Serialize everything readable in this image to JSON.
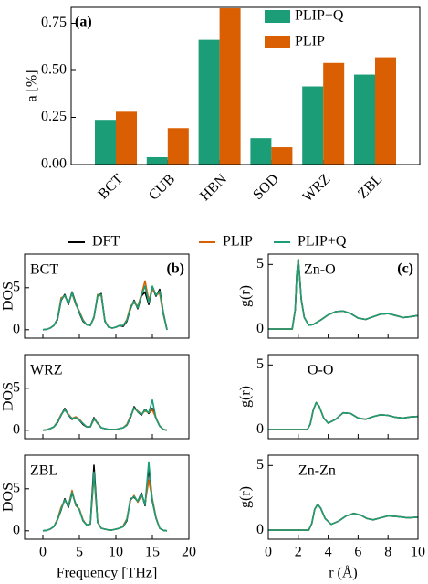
{
  "chart_data": [
    {
      "type": "bar",
      "annotation": "(a)",
      "ylabel": "a [%]",
      "categories": [
        "BCT",
        "CUB",
        "HBN",
        "SOD",
        "WRZ",
        "ZBL"
      ],
      "series": [
        {
          "name": "PLIP+Q",
          "color": "#1b9e77",
          "values": [
            0.237,
            0.039,
            0.662,
            0.14,
            0.415,
            0.478
          ]
        },
        {
          "name": "PLIP",
          "color": "#d95f02",
          "values": [
            0.28,
            0.193,
            0.83,
            0.092,
            0.54,
            0.57
          ]
        }
      ],
      "ylim": [
        0,
        0.835
      ],
      "yticks": [
        {
          "value": 0,
          "label": "0.00"
        },
        {
          "value": 0.25,
          "label": "0.25"
        },
        {
          "value": 0.5,
          "label": "0.50"
        },
        {
          "value": 0.75,
          "label": "0.75"
        }
      ],
      "legend": "upper right"
    },
    {
      "type": "line",
      "title": "BCT",
      "annotation": "(b)",
      "ylabel": "DOS",
      "xlim": [
        -2.5,
        20
      ],
      "ylim": [
        -1,
        9
      ],
      "xticks": [
        0,
        5,
        10,
        15,
        20
      ],
      "yticks": [
        0,
        5
      ],
      "show_xtick_labels": false,
      "legend": "above",
      "x": [
        0,
        0.5,
        1,
        1.5,
        2,
        2.5,
        3,
        3.5,
        4,
        4.5,
        5,
        5.5,
        6,
        6.5,
        7,
        7.5,
        8,
        8.5,
        9,
        9.5,
        10,
        10.5,
        11,
        11.5,
        12,
        12.5,
        13,
        13.5,
        14,
        14.5,
        15,
        15.5,
        16,
        16.5,
        17
      ],
      "series": [
        {
          "name": "DFT",
          "color": "#000000",
          "values": [
            0,
            0.05,
            0.2,
            0.5,
            1.2,
            3.5,
            4.2,
            3.0,
            4.5,
            3.2,
            2.0,
            1.0,
            0.6,
            0.5,
            1.5,
            4.0,
            4.3,
            1.0,
            0.3,
            0.2,
            0.3,
            0.5,
            0.4,
            1.0,
            2.5,
            3.5,
            2.5,
            4.0,
            4.5,
            3.0,
            5.0,
            4.0,
            4.8,
            2.0,
            0
          ]
        },
        {
          "name": "PLIP",
          "color": "#d95f02",
          "values": [
            0,
            0.05,
            0.2,
            0.5,
            1.3,
            3.8,
            4.0,
            3.2,
            4.3,
            3.0,
            2.2,
            1.2,
            0.6,
            0.5,
            1.4,
            4.2,
            4.0,
            1.1,
            0.3,
            0.2,
            0.3,
            0.5,
            0.5,
            1.2,
            2.8,
            3.2,
            2.8,
            4.2,
            5.8,
            3.5,
            4.8,
            4.2,
            4.3,
            1.8,
            0
          ]
        },
        {
          "name": "PLIP+Q",
          "color": "#1b9e77",
          "values": [
            0,
            0.05,
            0.2,
            0.5,
            1.3,
            3.6,
            4.1,
            3.1,
            4.4,
            3.1,
            2.1,
            1.1,
            0.6,
            0.5,
            1.5,
            4.1,
            4.2,
            1.0,
            0.3,
            0.2,
            0.3,
            0.5,
            0.5,
            1.1,
            2.6,
            3.4,
            2.6,
            4.1,
            5.2,
            3.2,
            5.2,
            4.1,
            4.6,
            1.9,
            0
          ]
        }
      ]
    },
    {
      "type": "line",
      "title": "WRZ",
      "ylabel": "DOS",
      "xlim": [
        -2.5,
        20
      ],
      "ylim": [
        -1,
        9
      ],
      "xticks": [
        0,
        5,
        10,
        15,
        20
      ],
      "yticks": [
        0,
        5
      ],
      "show_xtick_labels": false,
      "x": [
        0,
        0.5,
        1,
        1.5,
        2,
        2.5,
        3,
        3.5,
        4,
        4.5,
        5,
        5.5,
        6,
        6.5,
        7,
        7.5,
        8,
        8.5,
        9,
        9.5,
        10,
        10.5,
        11,
        11.5,
        12,
        12.5,
        13,
        13.5,
        14,
        14.5,
        15,
        15.5,
        16,
        16.5,
        17
      ],
      "series": [
        {
          "color": "#000000",
          "values": [
            0,
            0.05,
            0.2,
            0.4,
            0.9,
            1.8,
            2.6,
            1.8,
            1.3,
            1.5,
            1.2,
            0.7,
            0.4,
            0.4,
            1.5,
            0.8,
            0.3,
            0.2,
            0.1,
            0.1,
            0.1,
            0.2,
            0.3,
            0.6,
            1.5,
            2.8,
            2.2,
            1.8,
            2.5,
            2.0,
            2.6,
            1.4,
            0.5,
            0.1,
            0
          ]
        },
        {
          "color": "#d95f02",
          "values": [
            0,
            0.05,
            0.2,
            0.4,
            1.0,
            1.9,
            2.4,
            1.9,
            1.4,
            1.6,
            1.3,
            0.8,
            0.4,
            0.4,
            1.3,
            0.9,
            0.3,
            0.2,
            0.1,
            0.1,
            0.1,
            0.2,
            0.3,
            0.7,
            1.7,
            2.6,
            2.3,
            1.9,
            2.3,
            2.1,
            2.4,
            1.5,
            0.5,
            0.1,
            0
          ]
        },
        {
          "color": "#1b9e77",
          "values": [
            0,
            0.05,
            0.2,
            0.4,
            1.0,
            1.8,
            2.5,
            1.8,
            1.4,
            1.5,
            1.2,
            0.8,
            0.4,
            0.4,
            1.4,
            0.8,
            0.3,
            0.2,
            0.1,
            0.1,
            0.1,
            0.2,
            0.3,
            0.6,
            1.6,
            2.7,
            2.2,
            1.9,
            2.4,
            2.1,
            3.6,
            1.4,
            0.5,
            0.1,
            0
          ]
        }
      ]
    },
    {
      "type": "line",
      "title": "ZBL",
      "ylabel": "DOS",
      "xlabel": "Frequency [THz]",
      "xlim": [
        -2.5,
        20
      ],
      "ylim": [
        -1,
        9
      ],
      "xticks": [
        0,
        5,
        10,
        15,
        20
      ],
      "yticks": [
        0,
        5
      ],
      "show_xtick_labels": true,
      "x": [
        0,
        0.5,
        1,
        1.5,
        2,
        2.5,
        3,
        3.5,
        4,
        4.5,
        5,
        5.5,
        6,
        6.5,
        7,
        7.5,
        8,
        8.5,
        9,
        9.5,
        10,
        10.5,
        11,
        11.5,
        12,
        12.5,
        13,
        13.5,
        14,
        14.5,
        15,
        15.5,
        16,
        16.5,
        17
      ],
      "series": [
        {
          "color": "#000000",
          "values": [
            0,
            0.05,
            0.2,
            0.5,
            1.3,
            2.5,
            3.8,
            2.8,
            4.5,
            3.2,
            2.5,
            1.2,
            0.7,
            0.8,
            7.8,
            1.0,
            0.3,
            0.2,
            0.1,
            0.1,
            0.2,
            0.3,
            0.5,
            1.2,
            3.8,
            4.0,
            3.5,
            4.5,
            3.0,
            7.5,
            3.5,
            1.5,
            0.3,
            0.05,
            0
          ]
        },
        {
          "color": "#d95f02",
          "values": [
            0,
            0.05,
            0.2,
            0.5,
            1.4,
            2.8,
            3.6,
            3.0,
            4.8,
            3.0,
            2.6,
            1.3,
            0.7,
            0.8,
            6.5,
            1.1,
            0.3,
            0.2,
            0.1,
            0.1,
            0.2,
            0.3,
            0.6,
            1.4,
            3.6,
            4.2,
            3.4,
            4.2,
            3.3,
            6.0,
            3.8,
            1.6,
            0.3,
            0.05,
            0
          ]
        },
        {
          "color": "#1b9e77",
          "values": [
            0,
            0.05,
            0.2,
            0.5,
            1.3,
            2.6,
            3.7,
            2.9,
            4.6,
            3.1,
            2.5,
            1.2,
            0.7,
            0.8,
            7.0,
            1.0,
            0.3,
            0.2,
            0.1,
            0.1,
            0.2,
            0.3,
            0.5,
            1.3,
            3.7,
            4.1,
            3.5,
            4.4,
            3.1,
            8.2,
            3.6,
            1.5,
            0.3,
            0.05,
            0
          ]
        }
      ]
    },
    {
      "type": "line",
      "title": "Zn-O",
      "annotation": "(c)",
      "ylabel": "g(r)",
      "xlim": [
        0,
        10
      ],
      "ylim": [
        -0.7,
        5.8
      ],
      "xticks": [
        0,
        2,
        4,
        6,
        8,
        10
      ],
      "yticks": [
        0,
        5
      ],
      "show_xtick_labels": false,
      "x": [
        0,
        1,
        1.6,
        1.8,
        1.9,
        2.0,
        2.1,
        2.2,
        2.4,
        2.7,
        3.0,
        3.5,
        4.0,
        4.5,
        5.0,
        5.5,
        6.0,
        6.5,
        7.0,
        7.5,
        8.0,
        8.5,
        9.0,
        9.5,
        10
      ],
      "series": [
        {
          "color": "#000000",
          "values": [
            0,
            0,
            0,
            1.5,
            4.2,
            5.4,
            4.0,
            2.3,
            0.9,
            0.3,
            0.35,
            0.7,
            1.1,
            1.35,
            1.4,
            1.2,
            0.85,
            0.75,
            0.95,
            1.15,
            1.2,
            1.05,
            0.9,
            0.95,
            1.05
          ]
        },
        {
          "color": "#d95f02",
          "values": [
            0,
            0,
            0,
            1.5,
            4.2,
            5.4,
            4.0,
            2.3,
            0.9,
            0.3,
            0.35,
            0.7,
            1.1,
            1.35,
            1.4,
            1.2,
            0.85,
            0.75,
            0.95,
            1.15,
            1.2,
            1.05,
            0.9,
            0.95,
            1.05
          ]
        },
        {
          "color": "#1b9e77",
          "values": [
            0,
            0,
            0,
            1.5,
            4.2,
            5.4,
            4.0,
            2.3,
            0.9,
            0.3,
            0.35,
            0.7,
            1.1,
            1.35,
            1.4,
            1.2,
            0.85,
            0.75,
            0.95,
            1.15,
            1.2,
            1.05,
            0.9,
            0.95,
            1.05
          ]
        }
      ]
    },
    {
      "type": "line",
      "title": "O-O",
      "ylabel": "g(r)",
      "xlim": [
        0,
        10
      ],
      "ylim": [
        -0.7,
        5.8
      ],
      "xticks": [
        0,
        2,
        4,
        6,
        8,
        10
      ],
      "yticks": [
        0,
        5
      ],
      "show_xtick_labels": false,
      "x": [
        0,
        1,
        2,
        2.6,
        2.8,
        3.0,
        3.2,
        3.4,
        3.7,
        4.0,
        4.5,
        5.0,
        5.5,
        6.0,
        6.5,
        7.0,
        7.5,
        8.0,
        8.5,
        9.0,
        9.5,
        10
      ],
      "series": [
        {
          "color": "#000000",
          "values": [
            0,
            0,
            0,
            0,
            0.4,
            1.5,
            2.1,
            1.8,
            0.9,
            0.5,
            0.8,
            1.3,
            1.25,
            0.9,
            0.8,
            1.0,
            1.15,
            1.1,
            0.95,
            0.9,
            0.98,
            1.02
          ]
        },
        {
          "color": "#d95f02",
          "values": [
            0,
            0,
            0,
            0,
            0.4,
            1.5,
            2.1,
            1.8,
            0.9,
            0.5,
            0.8,
            1.3,
            1.25,
            0.9,
            0.8,
            1.0,
            1.15,
            1.1,
            0.95,
            0.9,
            0.98,
            1.02
          ]
        },
        {
          "color": "#1b9e77",
          "values": [
            0,
            0,
            0,
            0,
            0.4,
            1.5,
            2.1,
            1.8,
            0.9,
            0.5,
            0.8,
            1.3,
            1.25,
            0.9,
            0.8,
            1.0,
            1.15,
            1.1,
            0.95,
            0.9,
            0.98,
            1.02
          ]
        }
      ]
    },
    {
      "type": "line",
      "title": "Zn-Zn",
      "ylabel": "g(r)",
      "xlabel": "r (Å)",
      "xlim": [
        0,
        10
      ],
      "ylim": [
        -0.7,
        5.8
      ],
      "xticks": [
        0,
        2,
        4,
        6,
        8,
        10
      ],
      "yticks": [
        0,
        5
      ],
      "show_xtick_labels": true,
      "x": [
        0,
        1,
        2,
        2.7,
        2.9,
        3.1,
        3.3,
        3.5,
        3.8,
        4.2,
        4.7,
        5.2,
        5.7,
        6.2,
        6.6,
        7.0,
        7.5,
        8.0,
        8.6,
        9.3,
        10
      ],
      "series": [
        {
          "color": "#000000",
          "values": [
            0,
            0,
            0,
            0,
            0.5,
            1.6,
            2.0,
            1.7,
            0.9,
            0.45,
            0.7,
            1.1,
            1.3,
            1.15,
            0.9,
            0.8,
            0.95,
            1.1,
            1.05,
            0.95,
            1.0
          ]
        },
        {
          "color": "#d95f02",
          "values": [
            0,
            0,
            0,
            0,
            0.5,
            1.6,
            2.0,
            1.7,
            0.9,
            0.45,
            0.7,
            1.1,
            1.3,
            1.15,
            0.9,
            0.8,
            0.95,
            1.1,
            1.05,
            0.95,
            1.0
          ]
        },
        {
          "color": "#1b9e77",
          "values": [
            0,
            0,
            0,
            0,
            0.5,
            1.6,
            2.0,
            1.7,
            0.9,
            0.45,
            0.7,
            1.1,
            1.3,
            1.15,
            0.9,
            0.8,
            0.95,
            1.1,
            1.05,
            0.95,
            1.0
          ]
        }
      ]
    }
  ]
}
